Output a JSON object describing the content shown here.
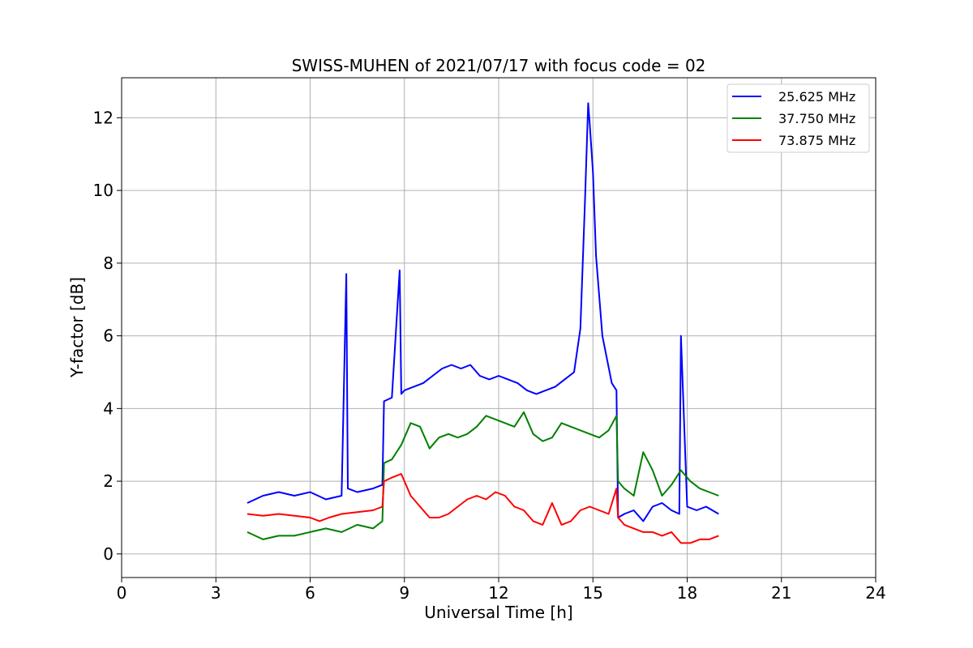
{
  "chart_data": {
    "type": "line",
    "title": "SWISS-MUHEN of 2021/07/17 with focus code = 02",
    "xlabel": "Universal Time [h]",
    "ylabel": "Y-factor [dB]",
    "xlim": [
      0,
      24
    ],
    "ylim": [
      -0.65,
      13.1
    ],
    "xticks": [
      0,
      3,
      6,
      9,
      12,
      15,
      18,
      21,
      24
    ],
    "yticks": [
      0,
      2,
      4,
      6,
      8,
      10,
      12
    ],
    "grid": true,
    "legend_position": "upper-right",
    "series": [
      {
        "name": "25.625 MHz",
        "color": "#0000ff",
        "x": [
          4.0,
          4.5,
          5.0,
          5.5,
          6.0,
          6.5,
          7.0,
          7.15,
          7.2,
          7.5,
          8.0,
          8.3,
          8.35,
          8.6,
          8.85,
          8.9,
          9.0,
          9.3,
          9.6,
          9.9,
          10.2,
          10.5,
          10.8,
          11.1,
          11.4,
          11.7,
          12.0,
          12.3,
          12.6,
          12.9,
          13.2,
          13.5,
          13.8,
          14.1,
          14.4,
          14.6,
          14.75,
          14.85,
          14.9,
          15.0,
          15.1,
          15.3,
          15.6,
          15.75,
          15.8,
          16.0,
          16.3,
          16.6,
          16.9,
          17.2,
          17.5,
          17.75,
          17.8,
          18.0,
          18.3,
          18.6,
          19.0
        ],
        "y": [
          1.4,
          1.6,
          1.7,
          1.6,
          1.7,
          1.5,
          1.6,
          7.7,
          1.8,
          1.7,
          1.8,
          1.9,
          4.2,
          4.3,
          7.8,
          4.4,
          4.5,
          4.6,
          4.7,
          4.9,
          5.1,
          5.2,
          5.1,
          5.2,
          4.9,
          4.8,
          4.9,
          4.8,
          4.7,
          4.5,
          4.4,
          4.5,
          4.6,
          4.8,
          5.0,
          6.2,
          9.8,
          12.4,
          11.8,
          10.5,
          8.2,
          6.0,
          4.7,
          4.5,
          1.0,
          1.1,
          1.2,
          0.9,
          1.3,
          1.4,
          1.2,
          1.1,
          6.0,
          1.3,
          1.2,
          1.3,
          1.1
        ]
      },
      {
        "name": "37.750 MHz",
        "color": "#008000",
        "x": [
          4.0,
          4.5,
          5.0,
          5.5,
          6.0,
          6.5,
          7.0,
          7.5,
          8.0,
          8.3,
          8.35,
          8.6,
          8.9,
          9.2,
          9.5,
          9.8,
          10.1,
          10.4,
          10.7,
          11.0,
          11.3,
          11.6,
          11.9,
          12.2,
          12.5,
          12.8,
          13.1,
          13.4,
          13.7,
          14.0,
          14.3,
          14.6,
          14.9,
          15.2,
          15.5,
          15.75,
          15.8,
          16.0,
          16.3,
          16.6,
          16.9,
          17.2,
          17.5,
          17.8,
          18.1,
          18.4,
          18.7,
          19.0
        ],
        "y": [
          0.6,
          0.4,
          0.5,
          0.5,
          0.6,
          0.7,
          0.6,
          0.8,
          0.7,
          0.9,
          2.5,
          2.6,
          3.0,
          3.6,
          3.5,
          2.9,
          3.2,
          3.3,
          3.2,
          3.3,
          3.5,
          3.8,
          3.7,
          3.6,
          3.5,
          3.9,
          3.3,
          3.1,
          3.2,
          3.6,
          3.5,
          3.4,
          3.3,
          3.2,
          3.4,
          3.8,
          2.0,
          1.8,
          1.6,
          2.8,
          2.3,
          1.6,
          1.9,
          2.3,
          2.0,
          1.8,
          1.7,
          1.6
        ]
      },
      {
        "name": "73.875 MHz",
        "color": "#ff0000",
        "x": [
          4.0,
          4.5,
          5.0,
          5.5,
          6.0,
          6.3,
          6.6,
          7.0,
          7.5,
          8.0,
          8.3,
          8.35,
          8.6,
          8.9,
          9.2,
          9.5,
          9.8,
          10.1,
          10.4,
          10.7,
          11.0,
          11.3,
          11.6,
          11.9,
          12.2,
          12.5,
          12.8,
          13.1,
          13.4,
          13.7,
          14.0,
          14.3,
          14.6,
          14.9,
          15.2,
          15.5,
          15.75,
          15.8,
          16.0,
          16.3,
          16.6,
          16.9,
          17.2,
          17.5,
          17.8,
          18.1,
          18.4,
          18.7,
          19.0
        ],
        "y": [
          1.1,
          1.05,
          1.1,
          1.05,
          1.0,
          0.9,
          1.0,
          1.1,
          1.15,
          1.2,
          1.3,
          2.0,
          2.1,
          2.2,
          1.6,
          1.3,
          1.0,
          1.0,
          1.1,
          1.3,
          1.5,
          1.6,
          1.5,
          1.7,
          1.6,
          1.3,
          1.2,
          0.9,
          0.8,
          1.4,
          0.8,
          0.9,
          1.2,
          1.3,
          1.2,
          1.1,
          1.8,
          1.0,
          0.8,
          0.7,
          0.6,
          0.6,
          0.5,
          0.6,
          0.3,
          0.3,
          0.4,
          0.4,
          0.5
        ]
      }
    ]
  }
}
